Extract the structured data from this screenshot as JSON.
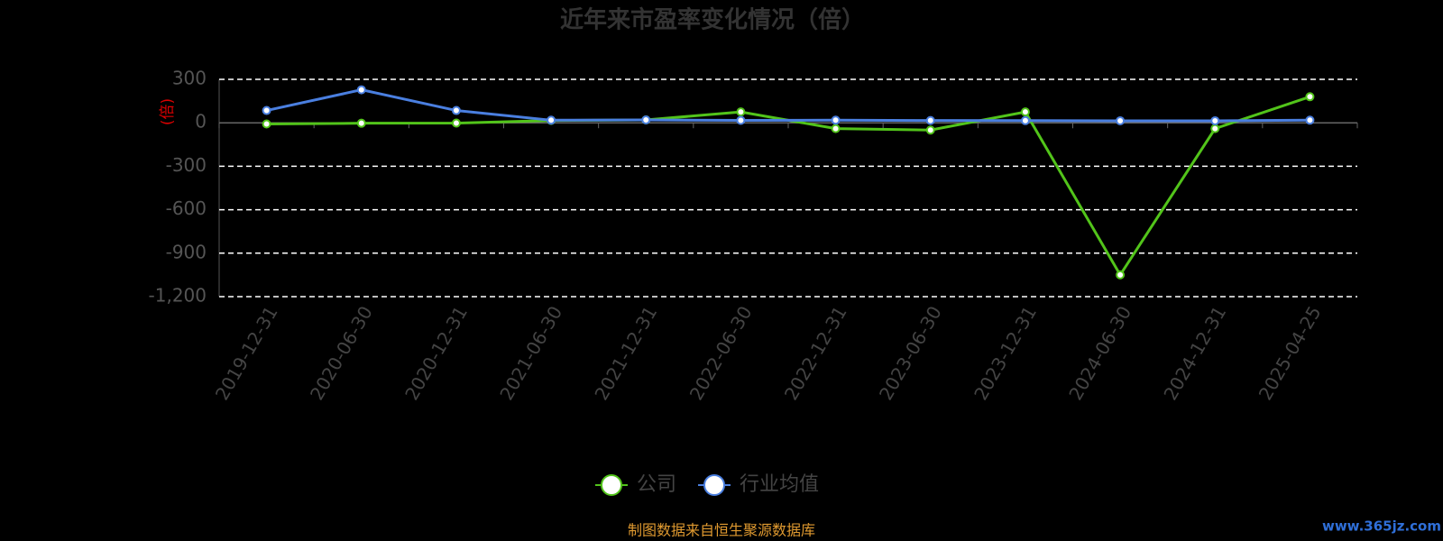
{
  "chart_data": {
    "type": "line",
    "title": "近年来市盈率变化情况（倍）",
    "y_label": "(倍)",
    "categories": [
      "2019-12-31",
      "2020-06-30",
      "2020-12-31",
      "2021-06-30",
      "2021-12-31",
      "2022-06-30",
      "2022-12-31",
      "2023-06-30",
      "2023-12-31",
      "2024-06-30",
      "2024-12-31",
      "2025-04-25"
    ],
    "series": [
      {
        "name": "公司",
        "color": "#52c41a",
        "values": [
          -8,
          -3,
          -2,
          16,
          20,
          75,
          -40,
          -50,
          75,
          -1050,
          -40,
          180
        ]
      },
      {
        "name": "行业均值",
        "color": "#4a7fe0",
        "values": [
          85,
          228,
          85,
          18,
          20,
          17,
          18,
          16,
          15,
          14,
          14,
          18
        ]
      }
    ],
    "ylim": [
      -1200,
      300
    ],
    "yticks": [
      300,
      0,
      -300,
      -600,
      -900,
      {
        "value": -1200,
        "label": "-1,200"
      }
    ],
    "grid": true,
    "footer": "制图数据来自恒生聚源数据库",
    "watermark": "www.365jz.com"
  }
}
